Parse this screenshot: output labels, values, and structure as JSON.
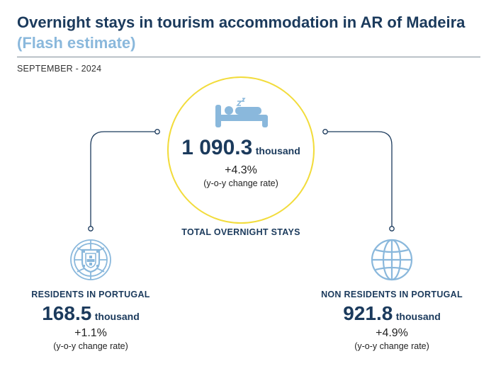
{
  "header": {
    "title": "Overnight stays in tourism accommodation in AR of Madeira",
    "subtitle": "(Flash estimate)",
    "period": "SEPTEMBER - 2024"
  },
  "colors": {
    "primary": "#1b3a5c",
    "accent_light_blue": "#8ab8dc",
    "circle_yellow": "#f2dc3c",
    "icon_blue": "#8ab8dc"
  },
  "total": {
    "value": "1 090.3",
    "unit": "thousand",
    "change": "+4.3%",
    "change_note": "(y-o-y change rate)",
    "label": "TOTAL OVERNIGHT STAYS",
    "icon": "sleeping-bed-icon"
  },
  "residents": {
    "label": "RESIDENTS IN PORTUGAL",
    "value": "168.5",
    "unit": "thousand",
    "change": "+1.1%",
    "change_note": "(y-o-y change rate)",
    "icon": "portugal-emblem-icon"
  },
  "non_residents": {
    "label": "NON RESIDENTS IN PORTUGAL",
    "value": "921.8",
    "unit": "thousand",
    "change": "+4.9%",
    "change_note": "(y-o-y change rate)",
    "icon": "globe-icon"
  }
}
